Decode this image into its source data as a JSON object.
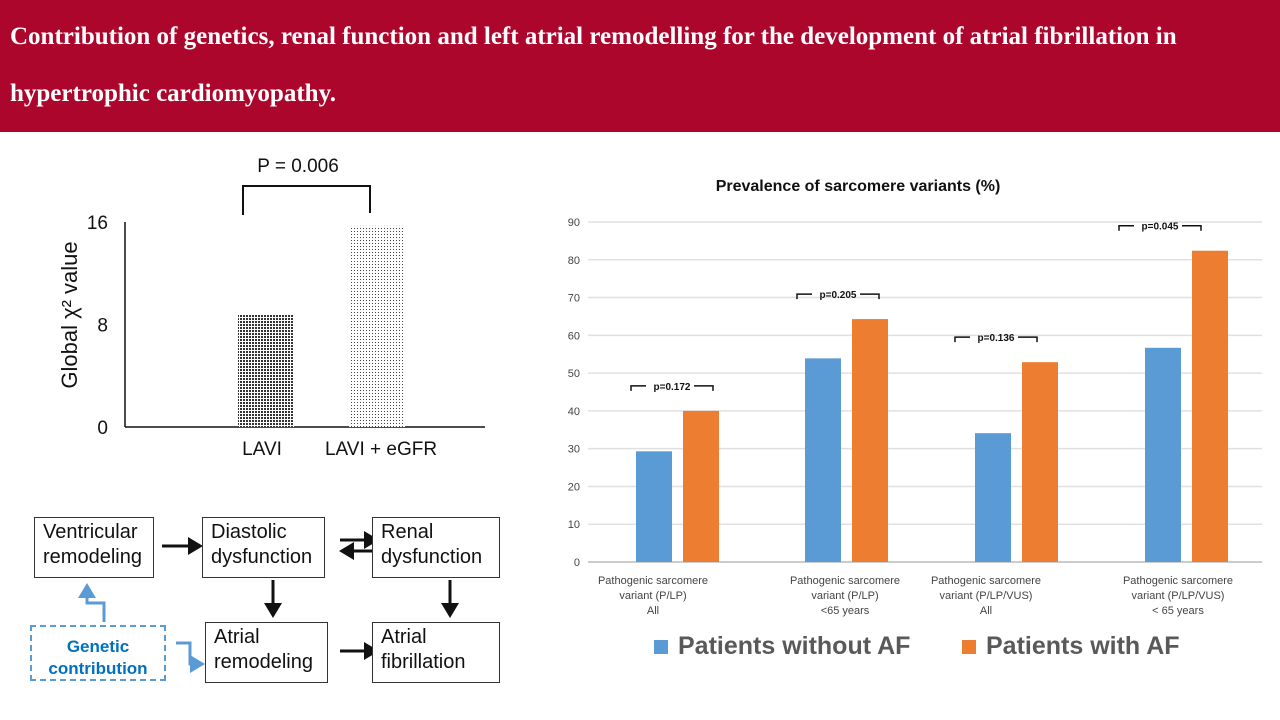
{
  "header": {
    "title": "Contribution of genetics, renal function and left atrial remodelling for the development of atrial fibrillation in hypertrophic cardiomyopathy."
  },
  "chart_data": [
    {
      "type": "bar",
      "categories": [
        "LAVI",
        "LAVI + eGFR"
      ],
      "values": [
        8.8,
        15.7
      ],
      "ylabel": "Global χ² value",
      "ylim": [
        0,
        16
      ],
      "yticks": [
        "0",
        "8",
        "16"
      ],
      "annotation": "P = 0.006",
      "grid": false
    },
    {
      "type": "bar",
      "title": "Prevalence of sarcomere variants (%)",
      "categories": [
        [
          "Pathogenic sarcomere",
          "variant (P/LP)",
          "All"
        ],
        [
          "Pathogenic sarcomere",
          "variant (P/LP)",
          "<65 years"
        ],
        [
          "Pathogenic sarcomere",
          "variant (P/LP/VUS)",
          "All"
        ],
        [
          "Pathogenic sarcomere",
          "variant (P/LP/VUS)",
          "< 65 years"
        ]
      ],
      "series": [
        {
          "name": "Patients without AF",
          "color": "#5b9bd5",
          "values": [
            29.3,
            53.9,
            34.1,
            56.7
          ]
        },
        {
          "name": "Patients with AF",
          "color": "#ed7d31",
          "values": [
            40.0,
            64.3,
            52.9,
            82.4
          ]
        }
      ],
      "pvalues": [
        "p=0.172",
        "p=0.205",
        "p=0.136",
        "p=0.045"
      ],
      "ylim": [
        0,
        90
      ],
      "yticks": [
        "0",
        "10",
        "20",
        "30",
        "40",
        "50",
        "60",
        "70",
        "80",
        "90"
      ],
      "grid": true,
      "legend": "bottom"
    }
  ],
  "diagram": {
    "ventricular": [
      "Ventricular",
      "remodeling"
    ],
    "diastolic": [
      "Diastolic",
      "dysfunction"
    ],
    "renal": [
      "Renal",
      "dysfunction"
    ],
    "atrial_remodeling": [
      "Atrial",
      "remodeling"
    ],
    "af": [
      "Atrial",
      "fibrillation"
    ],
    "genetic": [
      "Genetic",
      "contribution"
    ]
  }
}
